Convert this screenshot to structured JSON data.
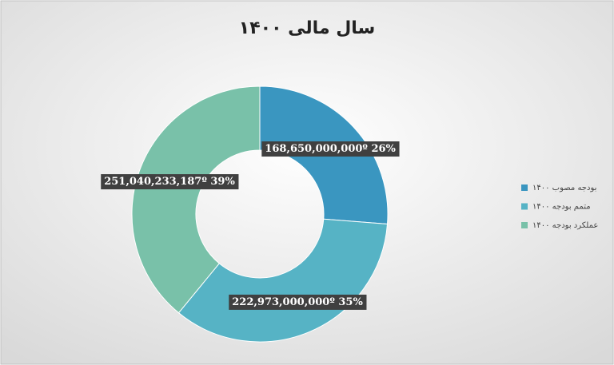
{
  "chart_data": {
    "type": "donut",
    "title": "سال مالی ۱۴۰۰",
    "categories": [
      "بودجه مصوب ۱۴۰۰",
      "متمم بودجه ۱۴۰۰",
      "عملکرد بودجه ۱۴۰۰"
    ],
    "values": [
      168650000000,
      222973000000,
      251040233187
    ],
    "value_labels": [
      "168,650,000,000º 26%",
      "222,973,000,000º 35%",
      "251,040,233,187º 39%"
    ],
    "colors": [
      "#3a96c0",
      "#56b3c5",
      "#79c1a9"
    ],
    "legend": "right"
  }
}
